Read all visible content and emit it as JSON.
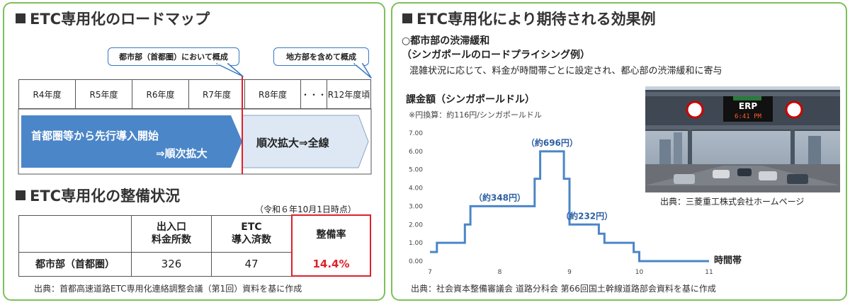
{
  "left_panel": {
    "roadmap_title": "ETC専用化のロードマップ",
    "callout_urban": "都市部（首都圏）において概成",
    "callout_rural": "地方部を含めて概成",
    "years": [
      "R4年度",
      "R5年度",
      "R6年度",
      "R7年度",
      "R8年度",
      "・・・",
      "R12年度頃"
    ],
    "phase1_line1": "首都圏等から先行導入開始",
    "phase1_line2": "⇒順次拡大",
    "phase2": "順次拡大⇒全線",
    "status_title": "ETC専用化の整備状況",
    "status_date": "（令和６年10月1日時点）",
    "table": {
      "col1_line1": "出入口",
      "col1_line2": "料金所数",
      "col2_line1": "ETC",
      "col2_line2": "導入済数",
      "col3": "整備率",
      "row_label": "都市部（首都圏）",
      "count_total": "326",
      "count_etc": "47",
      "rate": "14.4%"
    },
    "source": "出典：首都高速道路ETC専用化連絡調整会議（第1回）資料を基に作成"
  },
  "right_panel": {
    "title": "ETC専用化により期待される効果例",
    "subtitle": "○都市部の渋滞緩和",
    "subtitle2": "（シンガポールのロードプライシング例）",
    "description": "混雑状況に応じて、料金が時間帯ごとに設定され、都心部の渋滞緩和に寄与",
    "photo_source": "出典：三菱重工株式会社ホームページ",
    "sign_time": "6:41 PM",
    "source": "出典：社会資本整備審議会 道路分科会 第66回国土幹線道路部会資料を基に作成"
  },
  "colors": {
    "border_green": "#7cc05a",
    "blue": "#3a78c2",
    "red": "#e0202a",
    "phase1_fill": "#4b86c8",
    "phase2_fill": "#dde8f4"
  },
  "chart_data": {
    "type": "line",
    "step": true,
    "title": "課金額（シンガポールドル）",
    "note": "※円換算：約116円/シンガポールドル",
    "xlabel": "時間帯",
    "ylabel": "",
    "xlim": [
      7,
      11
    ],
    "ylim": [
      0,
      7
    ],
    "xticks": [
      7,
      8,
      9,
      10,
      11
    ],
    "yticks": [
      "0.00",
      "1.00",
      "2.00",
      "3.00",
      "4.00",
      "5.00",
      "6.00",
      "7.00"
    ],
    "grid": false,
    "points": [
      {
        "x": 7.0,
        "y": 0.5
      },
      {
        "x": 7.1,
        "y": 0.5
      },
      {
        "x": 7.1,
        "y": 1.0
      },
      {
        "x": 7.5,
        "y": 1.0
      },
      {
        "x": 7.5,
        "y": 2.0
      },
      {
        "x": 7.58,
        "y": 2.0
      },
      {
        "x": 7.58,
        "y": 3.0
      },
      {
        "x": 8.5,
        "y": 3.0
      },
      {
        "x": 8.5,
        "y": 4.5
      },
      {
        "x": 8.58,
        "y": 4.5
      },
      {
        "x": 8.58,
        "y": 6.0
      },
      {
        "x": 8.92,
        "y": 6.0
      },
      {
        "x": 8.92,
        "y": 4.5
      },
      {
        "x": 9.0,
        "y": 4.5
      },
      {
        "x": 9.0,
        "y": 2.0
      },
      {
        "x": 9.42,
        "y": 2.0
      },
      {
        "x": 9.42,
        "y": 1.5
      },
      {
        "x": 9.5,
        "y": 1.5
      },
      {
        "x": 9.5,
        "y": 1.0
      },
      {
        "x": 9.92,
        "y": 1.0
      },
      {
        "x": 9.92,
        "y": 0.5
      },
      {
        "x": 10.0,
        "y": 0.5
      },
      {
        "x": 10.0,
        "y": 0.0
      },
      {
        "x": 11.0,
        "y": 0.0
      }
    ],
    "annotations": [
      {
        "text": "（約696円）",
        "x": 8.75,
        "y": 6.0
      },
      {
        "text": "（約348円）",
        "x": 8.0,
        "y": 3.0
      },
      {
        "text": "（約232円）",
        "x": 9.25,
        "y": 2.0
      }
    ]
  }
}
